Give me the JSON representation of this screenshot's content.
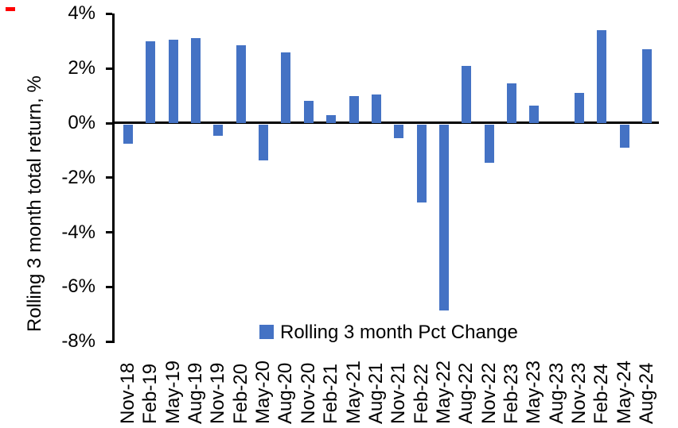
{
  "chart_data": {
    "type": "bar",
    "title": "",
    "xlabel": "",
    "ylabel": "Rolling 3 month total return, %",
    "categories": [
      "Nov-18",
      "Feb-19",
      "May-19",
      "Aug-19",
      "Nov-19",
      "Feb-20",
      "May-20",
      "Aug-20",
      "Nov-20",
      "Feb-21",
      "May-21",
      "Aug-21",
      "Nov-21",
      "Feb-22",
      "May-22",
      "Aug-22",
      "Nov-22",
      "Feb-23",
      "May-23",
      "Aug-23",
      "Nov-23",
      "Feb-24",
      "May-24",
      "Aug-24"
    ],
    "series": [
      {
        "name": "Rolling 3 month Pct Change",
        "values": [
          -0.7,
          3.0,
          3.05,
          3.1,
          -0.4,
          2.85,
          -1.3,
          2.6,
          0.8,
          0.3,
          1.0,
          1.05,
          -0.5,
          -2.85,
          -6.8,
          2.1,
          -1.4,
          1.45,
          0.65,
          0.0,
          1.1,
          3.4,
          -0.85,
          2.7
        ]
      }
    ],
    "ylim": [
      -8,
      4
    ],
    "yticks": [
      {
        "value": 4,
        "label": "4%"
      },
      {
        "value": 2,
        "label": "2%"
      },
      {
        "value": 0,
        "label": "0%"
      },
      {
        "value": -2,
        "label": "-2%"
      },
      {
        "value": -4,
        "label": "-4%"
      },
      {
        "value": -6,
        "label": "-6%"
      },
      {
        "value": -8,
        "label": "-8%"
      }
    ],
    "grid": false,
    "legend_position": "bottom-center",
    "bar_color": "#4472C4",
    "axis_color": "#000000",
    "background_color": "#FFFFFF"
  },
  "legend": {
    "label": "Rolling 3 month Pct Change",
    "marker_color": "#4472C4"
  },
  "red_marker": {
    "color": "#FF0000"
  }
}
